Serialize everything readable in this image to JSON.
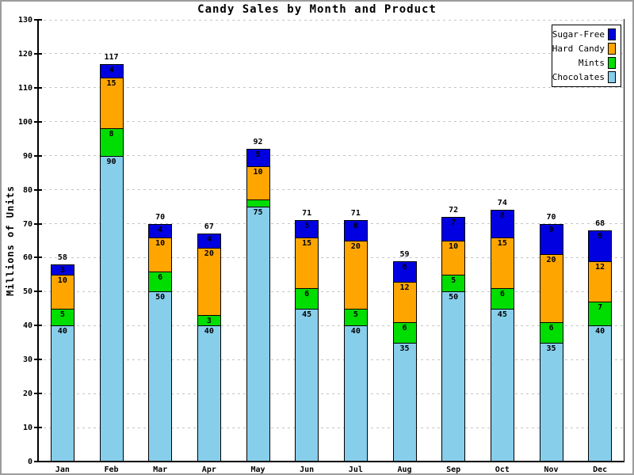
{
  "chart_data": {
    "type": "bar",
    "stacked": true,
    "title": "Candy Sales by Month and Product",
    "xlabel": "",
    "ylabel": "Millions of Units",
    "categories": [
      "Jan",
      "Feb",
      "Mar",
      "Apr",
      "May",
      "Jun",
      "Jul",
      "Aug",
      "Sep",
      "Oct",
      "Nov",
      "Dec"
    ],
    "series": [
      {
        "name": "Chocolates",
        "color": "#87CEEB",
        "values": [
          40,
          90,
          50,
          40,
          75,
          45,
          40,
          35,
          50,
          45,
          35,
          40
        ]
      },
      {
        "name": "Mints",
        "color": "#00DD00",
        "values": [
          5,
          8,
          6,
          3,
          2,
          6,
          5,
          6,
          5,
          6,
          6,
          7
        ]
      },
      {
        "name": "Hard Candy",
        "color": "#FFA500",
        "values": [
          10,
          15,
          10,
          20,
          10,
          15,
          20,
          12,
          10,
          15,
          20,
          12
        ]
      },
      {
        "name": "Sugar-Free",
        "color": "#0000E0",
        "values": [
          3,
          4,
          4,
          4,
          5,
          5,
          6,
          6,
          7,
          8,
          9,
          9
        ]
      }
    ],
    "totals": [
      58,
      117,
      70,
      67,
      92,
      71,
      71,
      59,
      72,
      74,
      70,
      68
    ],
    "ylim": [
      0,
      130
    ],
    "yticks": [
      0,
      10,
      20,
      30,
      40,
      50,
      60,
      70,
      80,
      90,
      100,
      110,
      120,
      130
    ],
    "grid": "dashed-horizontal",
    "legend_position": "top-right",
    "legend_order": [
      "Sugar-Free",
      "Hard Candy",
      "Mints",
      "Chocolates"
    ],
    "colors": {
      "axis": "#000000",
      "gridline": "#c4c4c4",
      "outer_border": "#9c9c9c",
      "background": "#ffffff"
    }
  }
}
